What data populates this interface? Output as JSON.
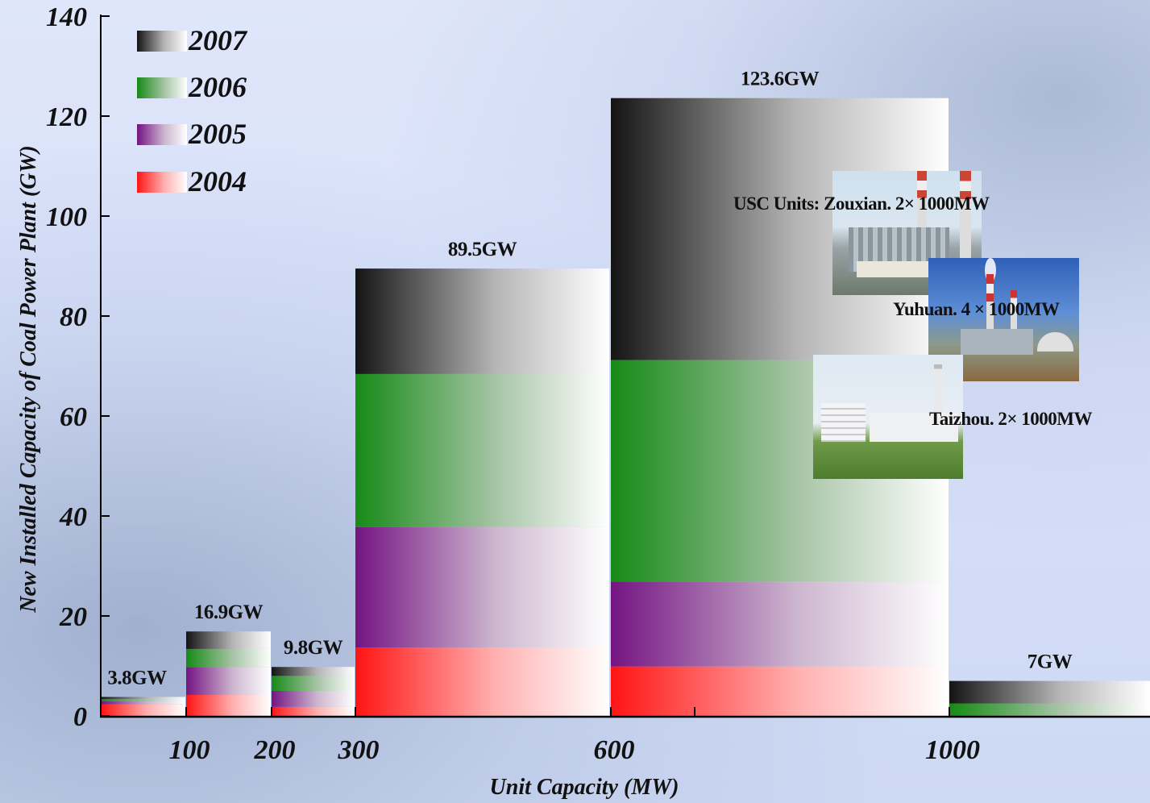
{
  "chart_data": {
    "type": "bar",
    "ylabel": "New Installed Capacity of Coal Power Plant (GW)",
    "xlabel": "Unit Capacity (MW)",
    "ylim": [
      0,
      140
    ],
    "yticks": [
      0,
      20,
      40,
      60,
      80,
      100,
      120,
      140
    ],
    "xtick_labels": [
      "100",
      "200",
      "300",
      "600",
      "1000"
    ],
    "legend_position": "top-left",
    "series": [
      {
        "name": "2007",
        "color": "#111111"
      },
      {
        "name": "2006",
        "color": "#1a8a1a"
      },
      {
        "name": "2005",
        "color": "#781a80"
      },
      {
        "name": "2004",
        "color": "#ff1a1a"
      }
    ],
    "bars": [
      {
        "unit_range": "<100",
        "label": "3.8GW",
        "total": 3.8,
        "y2004": 2.3,
        "y2005": 2.9,
        "y2006": 3.4,
        "y2007": 3.8
      },
      {
        "unit_range": "100-200",
        "label": "16.9GW",
        "total": 16.9,
        "y2004": 4.2,
        "y2005": 9.8,
        "y2006": 13.4,
        "y2007": 16.9
      },
      {
        "unit_range": "200-300",
        "label": "9.8GW",
        "total": 9.8,
        "y2004": 1.8,
        "y2005": 5.0,
        "y2006": 8.0,
        "y2007": 9.8
      },
      {
        "unit_range": "300-600",
        "label": "89.5GW",
        "total": 89.5,
        "y2004": 13.7,
        "y2005": 37.8,
        "y2006": 68.4,
        "y2007": 89.5
      },
      {
        "unit_range": "600-1000",
        "label": "123.6GW",
        "total": 123.6,
        "y2004": 9.9,
        "y2005": 26.9,
        "y2006": 71.2,
        "y2007": 123.6
      },
      {
        "unit_range": ">1000",
        "label": "7GW",
        "total": 7.0,
        "y2004": 0,
        "y2005": 0,
        "y2006": 2.5,
        "y2007": 7.0
      }
    ]
  },
  "photos": {
    "zouxian_caption": "USC Units: Zouxian. 2× 1000MW",
    "yuhuan_caption": "Yuhuan. 4 × 1000MW",
    "taizhou_caption": "Taizhou. 2× 1000MW"
  }
}
